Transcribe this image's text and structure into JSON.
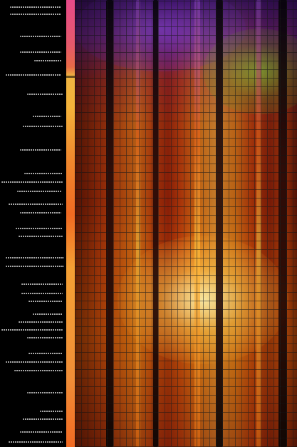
{
  "image": {
    "subject": "abstract-graphic",
    "colors": {
      "background": "#000000",
      "text_lines": "#dcdcdc",
      "strip_top": "#e64a8a",
      "strip_mid": "#f4b33a",
      "strip_bottom": "#f26a22",
      "warm_orange": "#f09a1c",
      "hot_yellow": "#ffd04a",
      "deep_red": "#8a1c05",
      "violet": "#7b3bd8",
      "lime": "#a0e63c"
    }
  }
}
